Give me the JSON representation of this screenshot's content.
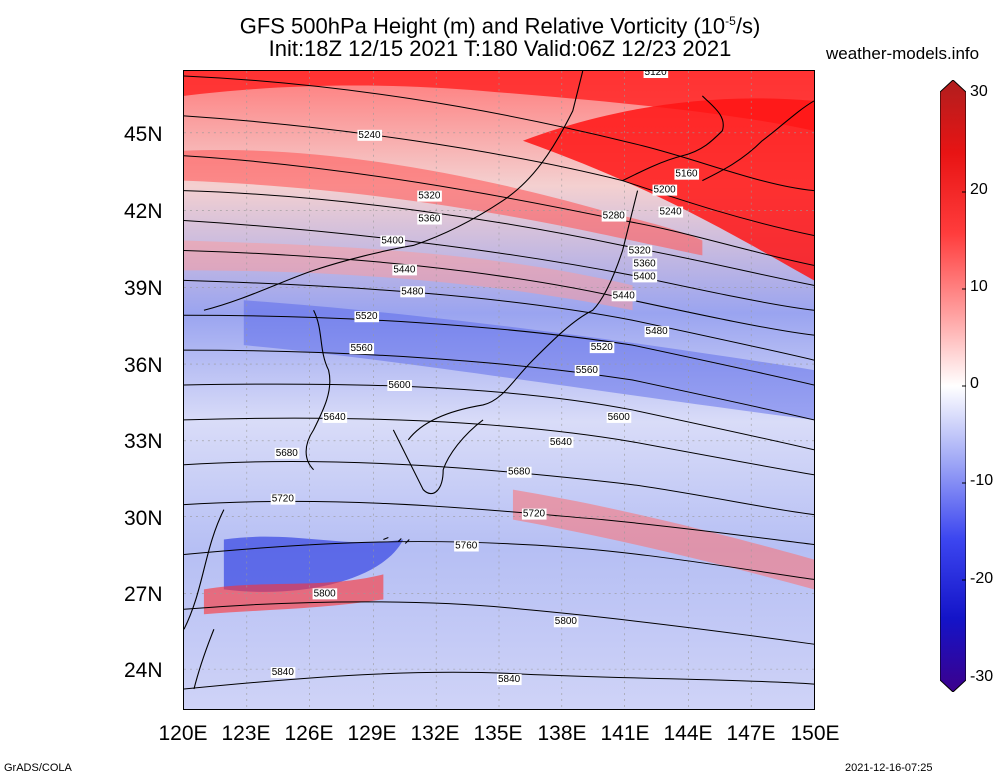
{
  "title": {
    "line1_pre": "GFS 500hPa Height (m) and Relative Vorticity (10",
    "line1_sup": "-5",
    "line1_post": "/s)",
    "line2": "Init:18Z 12/15 2021 T:180 Valid:06Z 12/23 2021"
  },
  "site": "weather-models.info",
  "map": {
    "lat_labels": [
      "45N",
      "42N",
      "39N",
      "36N",
      "33N",
      "30N",
      "27N",
      "24N"
    ],
    "lon_labels": [
      "120E",
      "123E",
      "126E",
      "129E",
      "132E",
      "135E",
      "138E",
      "141E",
      "144E",
      "147E",
      "150E"
    ],
    "contour_labels": [
      "5120",
      "5160",
      "5200",
      "5240",
      "5240",
      "5280",
      "5320",
      "5320",
      "5360",
      "5360",
      "5400",
      "5400",
      "5440",
      "5440",
      "5480",
      "5480",
      "5520",
      "5520",
      "5560",
      "5560",
      "5600",
      "5600",
      "5640",
      "5640",
      "5680",
      "5680",
      "5720",
      "5720",
      "5760",
      "5800",
      "5800",
      "5840",
      "5840"
    ]
  },
  "colorbar": {
    "labels": [
      "30",
      "20",
      "10",
      "0",
      "-10",
      "-20",
      "-30"
    ],
    "colors": {
      "max": "#c81e1e",
      "pos": "#ff0000",
      "zero": "#ffffff",
      "neg": "#0000ff",
      "min": "#3c008c"
    }
  },
  "footer": {
    "left": "GrADS/COLA",
    "right": "2021-12-16-07:25"
  }
}
